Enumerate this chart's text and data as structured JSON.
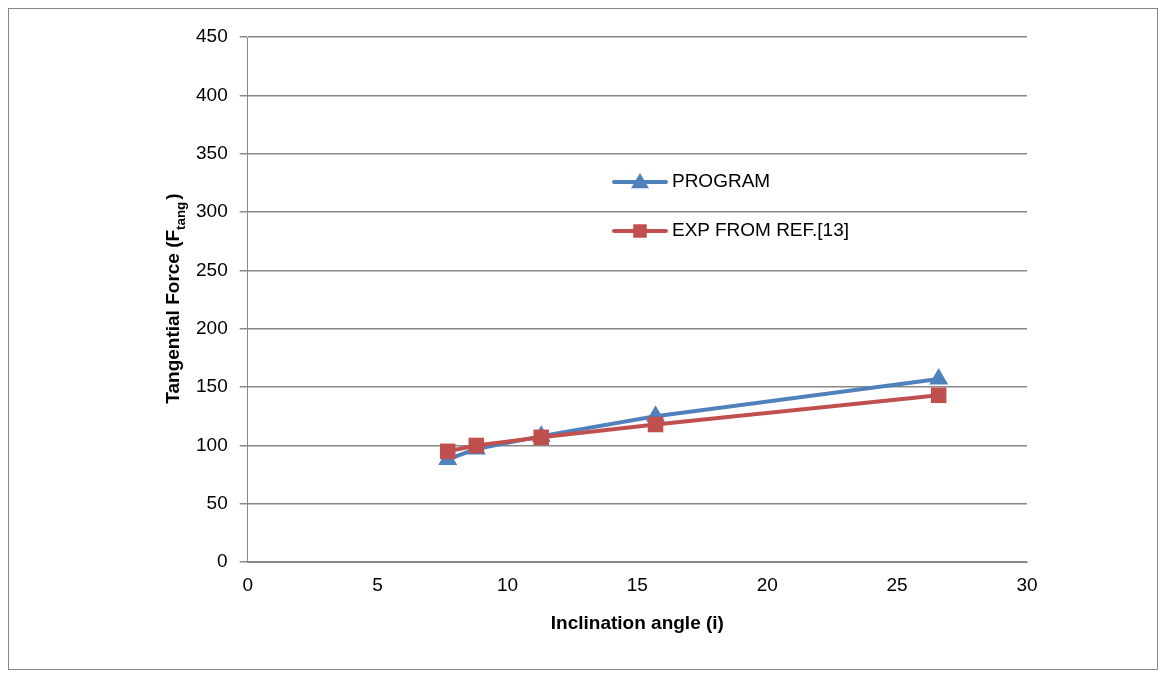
{
  "chart_data": {
    "type": "line",
    "xlabel": "Inclination angle (i)",
    "ylabel": "Tangential Force (F$_{tang}$)",
    "xlim": [
      0,
      30
    ],
    "xticks": [
      0,
      5,
      10,
      15,
      20,
      25,
      30
    ],
    "ylim": [
      0,
      450
    ],
    "yticks": [
      0,
      50,
      100,
      150,
      200,
      250,
      300,
      350,
      400,
      450
    ],
    "grid": "y",
    "legend": "top right",
    "line_style": "solid",
    "series": [
      {
        "name": "PROGRAM",
        "color": "#4f81bd",
        "marker": "triangle",
        "x": [
          7.7,
          8.8,
          11.3,
          15.7,
          26.6
        ],
        "values": [
          88,
          97,
          108,
          125,
          157
        ]
      },
      {
        "name": "EXP FROM REF.[13]",
        "color": "#c0504d",
        "marker": "square",
        "x": [
          7.7,
          8.8,
          11.3,
          15.7,
          26.6
        ],
        "values": [
          95,
          100,
          107,
          118,
          143
        ]
      }
    ]
  }
}
